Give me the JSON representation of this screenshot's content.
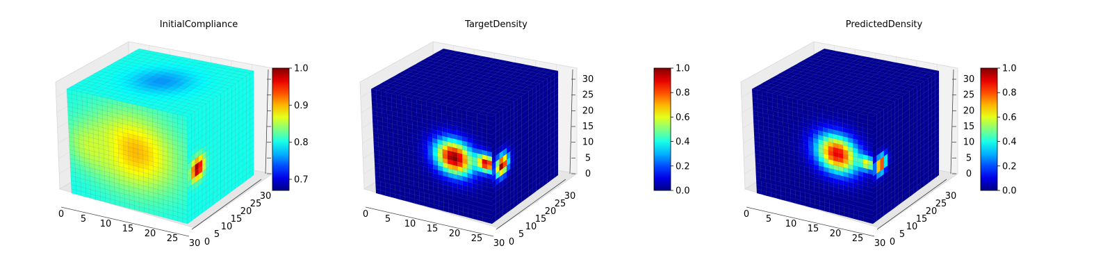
{
  "chart_data": [
    {
      "type": "3d-voxel",
      "title": "InitialCompliance",
      "x_ticks": [
        "0",
        "5",
        "10",
        "15",
        "20",
        "25",
        "30"
      ],
      "y_ticks": [
        "0",
        "5",
        "10",
        "15",
        "20",
        "25",
        "30"
      ],
      "z_ticks": [],
      "colormap": "jet",
      "colorbar": {
        "min": 0.67,
        "max": 1.0,
        "ticks": [
          "0.7",
          "0.8",
          "0.9",
          "1.0"
        ],
        "tick_values": [
          0.7,
          0.8,
          0.9,
          1.0
        ]
      },
      "base_value": 0.8,
      "blobs": [
        {
          "face": "front",
          "u": 0.55,
          "v": 0.45,
          "radius": 0.45,
          "value": 0.9
        },
        {
          "face": "front",
          "u": 0.2,
          "v": 0.5,
          "radius": 0.25,
          "value": 0.86
        },
        {
          "face": "right",
          "u": 0.15,
          "v": 0.55,
          "radius": 0.12,
          "value": 1.0
        },
        {
          "face": "top",
          "u": 0.5,
          "v": 0.5,
          "radius": 0.3,
          "value": 0.76
        }
      ]
    },
    {
      "type": "3d-voxel",
      "title": "TargetDensity",
      "x_ticks": [
        "0",
        "5",
        "10",
        "15",
        "20",
        "25",
        "30"
      ],
      "y_ticks": [
        "0",
        "5",
        "10",
        "15",
        "20",
        "25",
        "30"
      ],
      "z_ticks": [
        "0",
        "5",
        "10",
        "15",
        "20",
        "25",
        "30"
      ],
      "colormap": "jet",
      "colorbar": {
        "min": 0.0,
        "max": 1.0,
        "ticks": [
          "0.0",
          "0.2",
          "0.4",
          "0.6",
          "0.8",
          "1.0"
        ],
        "tick_values": [
          0.0,
          0.2,
          0.4,
          0.6,
          0.8,
          1.0
        ]
      },
      "base_value": 0.02,
      "blobs": [
        {
          "face": "front",
          "u": 0.68,
          "v": 0.47,
          "radius": 0.2,
          "value": 1.0
        },
        {
          "face": "front",
          "u": 0.95,
          "v": 0.45,
          "radius": 0.1,
          "value": 0.95
        },
        {
          "face": "right",
          "u": 0.15,
          "v": 0.52,
          "radius": 0.12,
          "value": 1.0
        }
      ]
    },
    {
      "type": "3d-voxel",
      "title": "PredictedDensity",
      "x_ticks": [
        "0",
        "5",
        "10",
        "15",
        "20",
        "25",
        "30"
      ],
      "y_ticks": [
        "0",
        "5",
        "10",
        "15",
        "20",
        "25",
        "30"
      ],
      "z_ticks": [
        "0",
        "5",
        "10",
        "15",
        "20",
        "25",
        "30"
      ],
      "colormap": "jet",
      "colorbar": {
        "min": 0.0,
        "max": 1.0,
        "ticks": [
          "0.0",
          "0.2",
          "0.4",
          "0.6",
          "0.8",
          "1.0"
        ],
        "tick_values": [
          0.0,
          0.2,
          0.4,
          0.6,
          0.8,
          1.0
        ]
      },
      "base_value": 0.02,
      "blobs": [
        {
          "face": "front",
          "u": 0.7,
          "v": 0.43,
          "radius": 0.22,
          "value": 0.9
        },
        {
          "face": "front",
          "u": 0.95,
          "v": 0.45,
          "radius": 0.08,
          "value": 0.65
        },
        {
          "face": "right",
          "u": 0.12,
          "v": 0.5,
          "radius": 0.1,
          "value": 0.95
        }
      ]
    }
  ]
}
